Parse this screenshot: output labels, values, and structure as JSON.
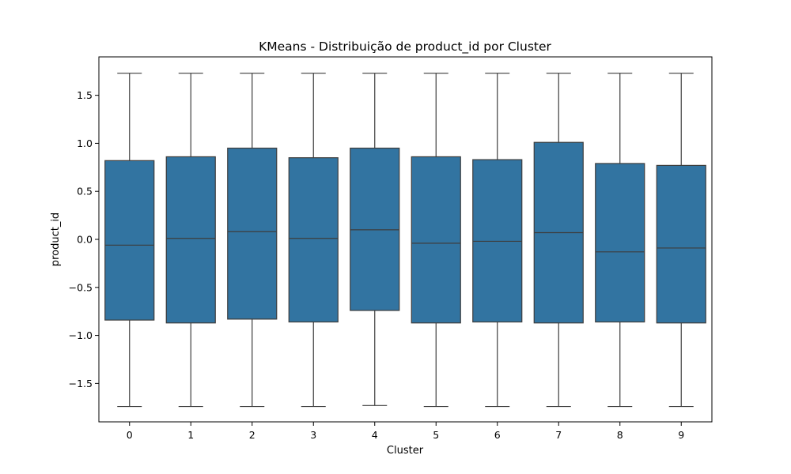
{
  "chart_data": {
    "type": "box",
    "title": "KMeans - Distribuição de product_id por Cluster",
    "xlabel": "Cluster",
    "ylabel": "product_id",
    "categories": [
      "0",
      "1",
      "2",
      "3",
      "4",
      "5",
      "6",
      "7",
      "8",
      "9"
    ],
    "ylim": [
      -1.9,
      1.9
    ],
    "yticks": [
      -1.5,
      -1.0,
      -0.5,
      0.0,
      0.5,
      1.0,
      1.5
    ],
    "ytick_labels": [
      "−1.5",
      "−1.0",
      "−0.5",
      "0.0",
      "0.5",
      "1.0",
      "1.5"
    ],
    "grid": false,
    "box_color": "#3274a1",
    "line_color": "#3d3d3d",
    "boxes": [
      {
        "cluster": "0",
        "whisker_low": -1.74,
        "q1": -0.84,
        "median": -0.06,
        "q3": 0.82,
        "whisker_high": 1.73
      },
      {
        "cluster": "1",
        "whisker_low": -1.74,
        "q1": -0.87,
        "median": 0.01,
        "q3": 0.86,
        "whisker_high": 1.73
      },
      {
        "cluster": "2",
        "whisker_low": -1.74,
        "q1": -0.83,
        "median": 0.08,
        "q3": 0.95,
        "whisker_high": 1.73
      },
      {
        "cluster": "3",
        "whisker_low": -1.74,
        "q1": -0.86,
        "median": 0.01,
        "q3": 0.85,
        "whisker_high": 1.73
      },
      {
        "cluster": "4",
        "whisker_low": -1.73,
        "q1": -0.74,
        "median": 0.1,
        "q3": 0.95,
        "whisker_high": 1.73
      },
      {
        "cluster": "5",
        "whisker_low": -1.74,
        "q1": -0.87,
        "median": -0.04,
        "q3": 0.86,
        "whisker_high": 1.73
      },
      {
        "cluster": "6",
        "whisker_low": -1.74,
        "q1": -0.86,
        "median": -0.02,
        "q3": 0.83,
        "whisker_high": 1.73
      },
      {
        "cluster": "7",
        "whisker_low": -1.74,
        "q1": -0.87,
        "median": 0.07,
        "q3": 1.01,
        "whisker_high": 1.73
      },
      {
        "cluster": "8",
        "whisker_low": -1.74,
        "q1": -0.86,
        "median": -0.13,
        "q3": 0.79,
        "whisker_high": 1.73
      },
      {
        "cluster": "9",
        "whisker_low": -1.74,
        "q1": -0.87,
        "median": -0.09,
        "q3": 0.77,
        "whisker_high": 1.73
      }
    ]
  }
}
